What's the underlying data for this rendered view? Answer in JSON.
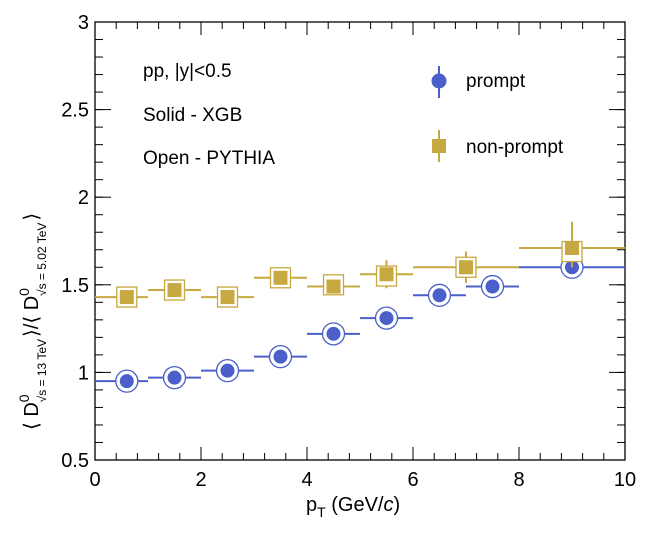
{
  "chart_data": {
    "type": "scatter",
    "title": "",
    "xlabel": {
      "main": "p",
      "sub": "T",
      "rest": " (GeV/",
      "italic": "c",
      "close": ")"
    },
    "ylabel": {
      "open": "⟨ D",
      "sup1": "0",
      "sub1": "√s = 13 TeV",
      "mid": "⟩/⟨ D",
      "sup2": "0",
      "sub2": "√s = 5.02 TeV",
      "close": "⟩"
    },
    "xlim": [
      0,
      10
    ],
    "ylim": [
      0.5,
      3
    ],
    "x_ticks": [
      0,
      2,
      4,
      6,
      8,
      10
    ],
    "x_tick_labels": [
      "0",
      "2",
      "4",
      "6",
      "8",
      "10"
    ],
    "y_ticks": [
      0.5,
      1,
      1.5,
      2,
      2.5,
      3
    ],
    "y_tick_labels": [
      "0.5",
      "1",
      "1.5",
      "2",
      "2.5",
      "3"
    ],
    "annotations": [
      "pp, |y|<0.5",
      "Solid - XGB",
      "Open - PYTHIA"
    ],
    "legend": {
      "position": "top-right",
      "entries": [
        "prompt",
        "non-prompt"
      ]
    },
    "colors": {
      "prompt": "#4a5fc9",
      "nonprompt": "#c8a840"
    },
    "series": [
      {
        "name": "prompt",
        "marker": "circle",
        "points": [
          {
            "x": 0.6,
            "xlo": 0,
            "xhi": 1,
            "y": 0.95,
            "ylo": 0.94,
            "yhi": 0.96,
            "open": 0.95
          },
          {
            "x": 1.5,
            "xlo": 1,
            "xhi": 2,
            "y": 0.97,
            "ylo": 0.96,
            "yhi": 0.98,
            "open": 0.97
          },
          {
            "x": 2.5,
            "xlo": 2,
            "xhi": 3,
            "y": 1.01,
            "ylo": 1.0,
            "yhi": 1.02,
            "open": 1.01
          },
          {
            "x": 3.5,
            "xlo": 3,
            "xhi": 4,
            "y": 1.09,
            "ylo": 1.08,
            "yhi": 1.1,
            "open": 1.09
          },
          {
            "x": 4.5,
            "xlo": 4,
            "xhi": 5,
            "y": 1.22,
            "ylo": 1.21,
            "yhi": 1.23,
            "open": 1.22
          },
          {
            "x": 5.5,
            "xlo": 5,
            "xhi": 6,
            "y": 1.31,
            "ylo": 1.3,
            "yhi": 1.32,
            "open": 1.31
          },
          {
            "x": 6.5,
            "xlo": 6,
            "xhi": 7,
            "y": 1.44,
            "ylo": 1.43,
            "yhi": 1.45,
            "open": 1.44
          },
          {
            "x": 7.5,
            "xlo": 7,
            "xhi": 8,
            "y": 1.49,
            "ylo": 1.48,
            "yhi": 1.5,
            "open": 1.49
          },
          {
            "x": 9.0,
            "xlo": 8,
            "xhi": 10,
            "y": 1.6,
            "ylo": 1.58,
            "yhi": 1.62,
            "open": 1.6
          }
        ]
      },
      {
        "name": "non-prompt",
        "marker": "square",
        "points": [
          {
            "x": 0.6,
            "xlo": 0,
            "xhi": 1,
            "y": 1.43,
            "ylo": 1.41,
            "yhi": 1.45,
            "open": 1.43
          },
          {
            "x": 1.5,
            "xlo": 1,
            "xhi": 2,
            "y": 1.47,
            "ylo": 1.45,
            "yhi": 1.49,
            "open": 1.47
          },
          {
            "x": 2.5,
            "xlo": 2,
            "xhi": 3,
            "y": 1.43,
            "ylo": 1.41,
            "yhi": 1.45,
            "open": 1.43
          },
          {
            "x": 3.5,
            "xlo": 3,
            "xhi": 4,
            "y": 1.54,
            "ylo": 1.52,
            "yhi": 1.56,
            "open": 1.54
          },
          {
            "x": 4.5,
            "xlo": 4,
            "xhi": 5,
            "y": 1.49,
            "ylo": 1.46,
            "yhi": 1.53,
            "open": 1.5
          },
          {
            "x": 5.5,
            "xlo": 5,
            "xhi": 6,
            "y": 1.56,
            "ylo": 1.48,
            "yhi": 1.64,
            "open": 1.55
          },
          {
            "x": 7.0,
            "xlo": 6,
            "xhi": 8,
            "y": 1.6,
            "ylo": 1.51,
            "yhi": 1.69,
            "open": 1.6
          },
          {
            "x": 9.0,
            "xlo": 8,
            "xhi": 10,
            "y": 1.71,
            "ylo": 1.6,
            "yhi": 1.86,
            "open": 1.69
          }
        ]
      }
    ]
  }
}
